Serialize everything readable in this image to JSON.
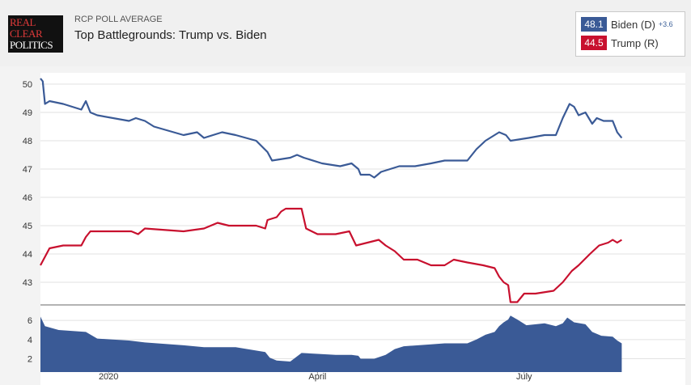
{
  "header": {
    "logo_lines": [
      "REAL",
      "CLEAR",
      "POLITICS"
    ],
    "kicker": "RCP POLL AVERAGE",
    "title": "Top Battlegrounds: Trump vs. Biden"
  },
  "legend": [
    {
      "value": "48.1",
      "name": "Biden (D)",
      "spread": "+3.6",
      "color": "#3a5a96"
    },
    {
      "value": "44.5",
      "name": "Trump (R)",
      "spread": "",
      "color": "#c8102e"
    }
  ],
  "chart_data": {
    "type": "line",
    "xlabel": "",
    "ylabel": "",
    "y_ticks": [
      43,
      44,
      45,
      46,
      47,
      48,
      49,
      50
    ],
    "ylim": [
      42.2,
      50.4
    ],
    "x_ticks": [
      {
        "x": 30,
        "label": "2020"
      },
      {
        "x": 122,
        "label": "April"
      },
      {
        "x": 213,
        "label": "July"
      }
    ],
    "xlim": [
      0,
      284
    ],
    "grid": true,
    "legend_position": "top-right",
    "series": [
      {
        "name": "Biden (D)",
        "color": "#3a5a96",
        "points": [
          [
            0,
            50.2
          ],
          [
            1,
            50.1
          ],
          [
            2,
            49.3
          ],
          [
            4,
            49.4
          ],
          [
            10,
            49.3
          ],
          [
            18,
            49.1
          ],
          [
            20,
            49.4
          ],
          [
            22,
            49.0
          ],
          [
            25,
            48.9
          ],
          [
            39,
            48.7
          ],
          [
            42,
            48.8
          ],
          [
            46,
            48.7
          ],
          [
            50,
            48.5
          ],
          [
            63,
            48.2
          ],
          [
            69,
            48.3
          ],
          [
            72,
            48.1
          ],
          [
            80,
            48.3
          ],
          [
            86,
            48.2
          ],
          [
            95,
            48.0
          ],
          [
            100,
            47.6
          ],
          [
            102,
            47.3
          ],
          [
            110,
            47.4
          ],
          [
            113,
            47.5
          ],
          [
            116,
            47.4
          ],
          [
            124,
            47.2
          ],
          [
            132,
            47.1
          ],
          [
            137,
            47.2
          ],
          [
            140,
            47.0
          ],
          [
            141,
            46.8
          ],
          [
            145,
            46.8
          ],
          [
            147,
            46.7
          ],
          [
            150,
            46.9
          ],
          [
            154,
            47.0
          ],
          [
            158,
            47.1
          ],
          [
            165,
            47.1
          ],
          [
            172,
            47.2
          ],
          [
            178,
            47.3
          ],
          [
            188,
            47.3
          ],
          [
            192,
            47.7
          ],
          [
            196,
            48.0
          ],
          [
            202,
            48.3
          ],
          [
            205,
            48.2
          ],
          [
            207,
            48.0
          ],
          [
            215,
            48.1
          ],
          [
            222,
            48.2
          ],
          [
            227,
            48.2
          ],
          [
            230,
            48.8
          ],
          [
            233,
            49.3
          ],
          [
            235,
            49.2
          ],
          [
            237,
            48.9
          ],
          [
            240,
            49.0
          ],
          [
            243,
            48.6
          ],
          [
            245,
            48.8
          ],
          [
            248,
            48.7
          ],
          [
            252,
            48.7
          ],
          [
            254,
            48.3
          ],
          [
            256,
            48.1
          ]
        ]
      },
      {
        "name": "Trump (R)",
        "color": "#c8102e",
        "points": [
          [
            0,
            43.6
          ],
          [
            2,
            43.9
          ],
          [
            4,
            44.2
          ],
          [
            10,
            44.3
          ],
          [
            18,
            44.3
          ],
          [
            20,
            44.6
          ],
          [
            22,
            44.8
          ],
          [
            40,
            44.8
          ],
          [
            43,
            44.7
          ],
          [
            46,
            44.9
          ],
          [
            63,
            44.8
          ],
          [
            72,
            44.9
          ],
          [
            78,
            45.1
          ],
          [
            83,
            45.0
          ],
          [
            95,
            45.0
          ],
          [
            99,
            44.9
          ],
          [
            100,
            45.2
          ],
          [
            104,
            45.3
          ],
          [
            106,
            45.5
          ],
          [
            108,
            45.6
          ],
          [
            115,
            45.6
          ],
          [
            117,
            44.9
          ],
          [
            122,
            44.7
          ],
          [
            130,
            44.7
          ],
          [
            136,
            44.8
          ],
          [
            139,
            44.3
          ],
          [
            149,
            44.5
          ],
          [
            152,
            44.3
          ],
          [
            156,
            44.1
          ],
          [
            160,
            43.8
          ],
          [
            166,
            43.8
          ],
          [
            172,
            43.6
          ],
          [
            178,
            43.6
          ],
          [
            182,
            43.8
          ],
          [
            188,
            43.7
          ],
          [
            195,
            43.6
          ],
          [
            200,
            43.5
          ],
          [
            202,
            43.2
          ],
          [
            204,
            43.0
          ],
          [
            206,
            42.9
          ],
          [
            207,
            42.3
          ],
          [
            210,
            42.3
          ],
          [
            213,
            42.6
          ],
          [
            218,
            42.6
          ],
          [
            226,
            42.7
          ],
          [
            230,
            43.0
          ],
          [
            234,
            43.4
          ],
          [
            237,
            43.6
          ],
          [
            242,
            44.0
          ],
          [
            246,
            44.3
          ],
          [
            250,
            44.4
          ],
          [
            252,
            44.5
          ],
          [
            254,
            44.4
          ],
          [
            256,
            44.5
          ]
        ]
      }
    ],
    "spread_panel": {
      "y_ticks": [
        2,
        4,
        6
      ],
      "ylim": [
        0.6,
        7.2
      ],
      "color": "#3a5a96",
      "points": [
        [
          0,
          6.4
        ],
        [
          2,
          5.4
        ],
        [
          8,
          5.0
        ],
        [
          20,
          4.8
        ],
        [
          25,
          4.1
        ],
        [
          39,
          3.9
        ],
        [
          46,
          3.7
        ],
        [
          63,
          3.4
        ],
        [
          72,
          3.2
        ],
        [
          86,
          3.2
        ],
        [
          99,
          2.7
        ],
        [
          101,
          2.1
        ],
        [
          104,
          1.8
        ],
        [
          110,
          1.7
        ],
        [
          115,
          2.6
        ],
        [
          122,
          2.5
        ],
        [
          130,
          2.4
        ],
        [
          137,
          2.4
        ],
        [
          140,
          2.3
        ],
        [
          141,
          2.0
        ],
        [
          147,
          2.0
        ],
        [
          152,
          2.4
        ],
        [
          156,
          3.0
        ],
        [
          160,
          3.3
        ],
        [
          172,
          3.5
        ],
        [
          178,
          3.6
        ],
        [
          188,
          3.6
        ],
        [
          192,
          4.0
        ],
        [
          196,
          4.5
        ],
        [
          200,
          4.8
        ],
        [
          202,
          5.4
        ],
        [
          204,
          5.8
        ],
        [
          206,
          6.1
        ],
        [
          207,
          6.5
        ],
        [
          210,
          6.1
        ],
        [
          214,
          5.5
        ],
        [
          222,
          5.7
        ],
        [
          227,
          5.4
        ],
        [
          230,
          5.7
        ],
        [
          232,
          6.3
        ],
        [
          235,
          5.8
        ],
        [
          240,
          5.6
        ],
        [
          243,
          4.8
        ],
        [
          247,
          4.4
        ],
        [
          252,
          4.3
        ],
        [
          254,
          3.9
        ],
        [
          256,
          3.6
        ]
      ]
    }
  }
}
